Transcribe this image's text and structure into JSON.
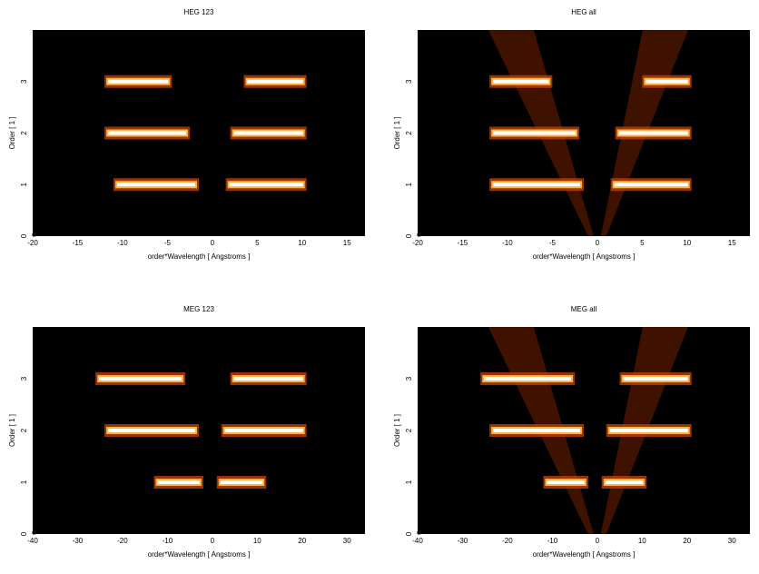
{
  "chart_data": [
    {
      "type": "heatmap",
      "title": "HEG 123",
      "xlabel": "order*Wavelength [ Angstroms ]",
      "ylabel": "Order [ 1 ]",
      "xlim": [
        -20,
        17
      ],
      "xticks": [
        -20,
        -15,
        -10,
        -5,
        0,
        5,
        10,
        15
      ],
      "ylim": [
        0,
        4
      ],
      "yticks": [
        0,
        1,
        2,
        3
      ],
      "bands": [
        {
          "order": 1,
          "x": [
            -11,
            -1.5
          ]
        },
        {
          "order": 1,
          "x": [
            1.5,
            10.5
          ]
        },
        {
          "order": 2,
          "x": [
            -12,
            -2.5
          ]
        },
        {
          "order": 2,
          "x": [
            2,
            10.5
          ]
        },
        {
          "order": 3,
          "x": [
            -12,
            -4.5
          ]
        },
        {
          "order": 3,
          "x": [
            3.5,
            10.5
          ]
        }
      ]
    },
    {
      "type": "heatmap",
      "title": "HEG all",
      "xlabel": "order*Wavelength [ Angstroms ]",
      "ylabel": "Order [ 1 ]",
      "xlim": [
        -20,
        17
      ],
      "xticks": [
        -20,
        -15,
        -10,
        -5,
        0,
        5,
        10,
        15
      ],
      "ylim": [
        0,
        4
      ],
      "yticks": [
        0,
        1,
        2,
        3
      ],
      "bands": [
        {
          "order": 1,
          "x": [
            -12,
            -1.5
          ]
        },
        {
          "order": 1,
          "x": [
            1.5,
            10.5
          ]
        },
        {
          "order": 2,
          "x": [
            -12,
            -2
          ]
        },
        {
          "order": 2,
          "x": [
            2,
            10.5
          ]
        },
        {
          "order": 3,
          "x": [
            -12,
            -5
          ]
        },
        {
          "order": 3,
          "x": [
            5,
            10.5
          ]
        }
      ]
    },
    {
      "type": "heatmap",
      "title": "MEG 123",
      "xlabel": "order*Wavelength [ Angstroms ]",
      "ylabel": "Order [ 1 ]",
      "xlim": [
        -40,
        34
      ],
      "xticks": [
        -40,
        -30,
        -20,
        -10,
        0,
        10,
        20,
        30
      ],
      "ylim": [
        0,
        4
      ],
      "yticks": [
        0,
        1,
        2,
        3
      ],
      "bands": [
        {
          "order": 1,
          "x": [
            -13,
            -2
          ]
        },
        {
          "order": 1,
          "x": [
            1,
            12
          ]
        },
        {
          "order": 2,
          "x": [
            -24,
            -3
          ]
        },
        {
          "order": 2,
          "x": [
            2,
            21
          ]
        },
        {
          "order": 3,
          "x": [
            -26,
            -6
          ]
        },
        {
          "order": 3,
          "x": [
            4,
            21
          ]
        }
      ]
    },
    {
      "type": "heatmap",
      "title": "MEG all",
      "xlabel": "order*Wavelength [ Angstroms ]",
      "ylabel": "Order [ 1 ]",
      "xlim": [
        -40,
        34
      ],
      "xticks": [
        -40,
        -30,
        -20,
        -10,
        0,
        10,
        20,
        30
      ],
      "ylim": [
        0,
        4
      ],
      "yticks": [
        0,
        1,
        2,
        3
      ],
      "bands": [
        {
          "order": 1,
          "x": [
            -12,
            -2
          ]
        },
        {
          "order": 1,
          "x": [
            1,
            11
          ]
        },
        {
          "order": 2,
          "x": [
            -24,
            -3
          ]
        },
        {
          "order": 2,
          "x": [
            2,
            21
          ]
        },
        {
          "order": 3,
          "x": [
            -26,
            -5
          ]
        },
        {
          "order": 3,
          "x": [
            5,
            21
          ]
        }
      ]
    }
  ]
}
